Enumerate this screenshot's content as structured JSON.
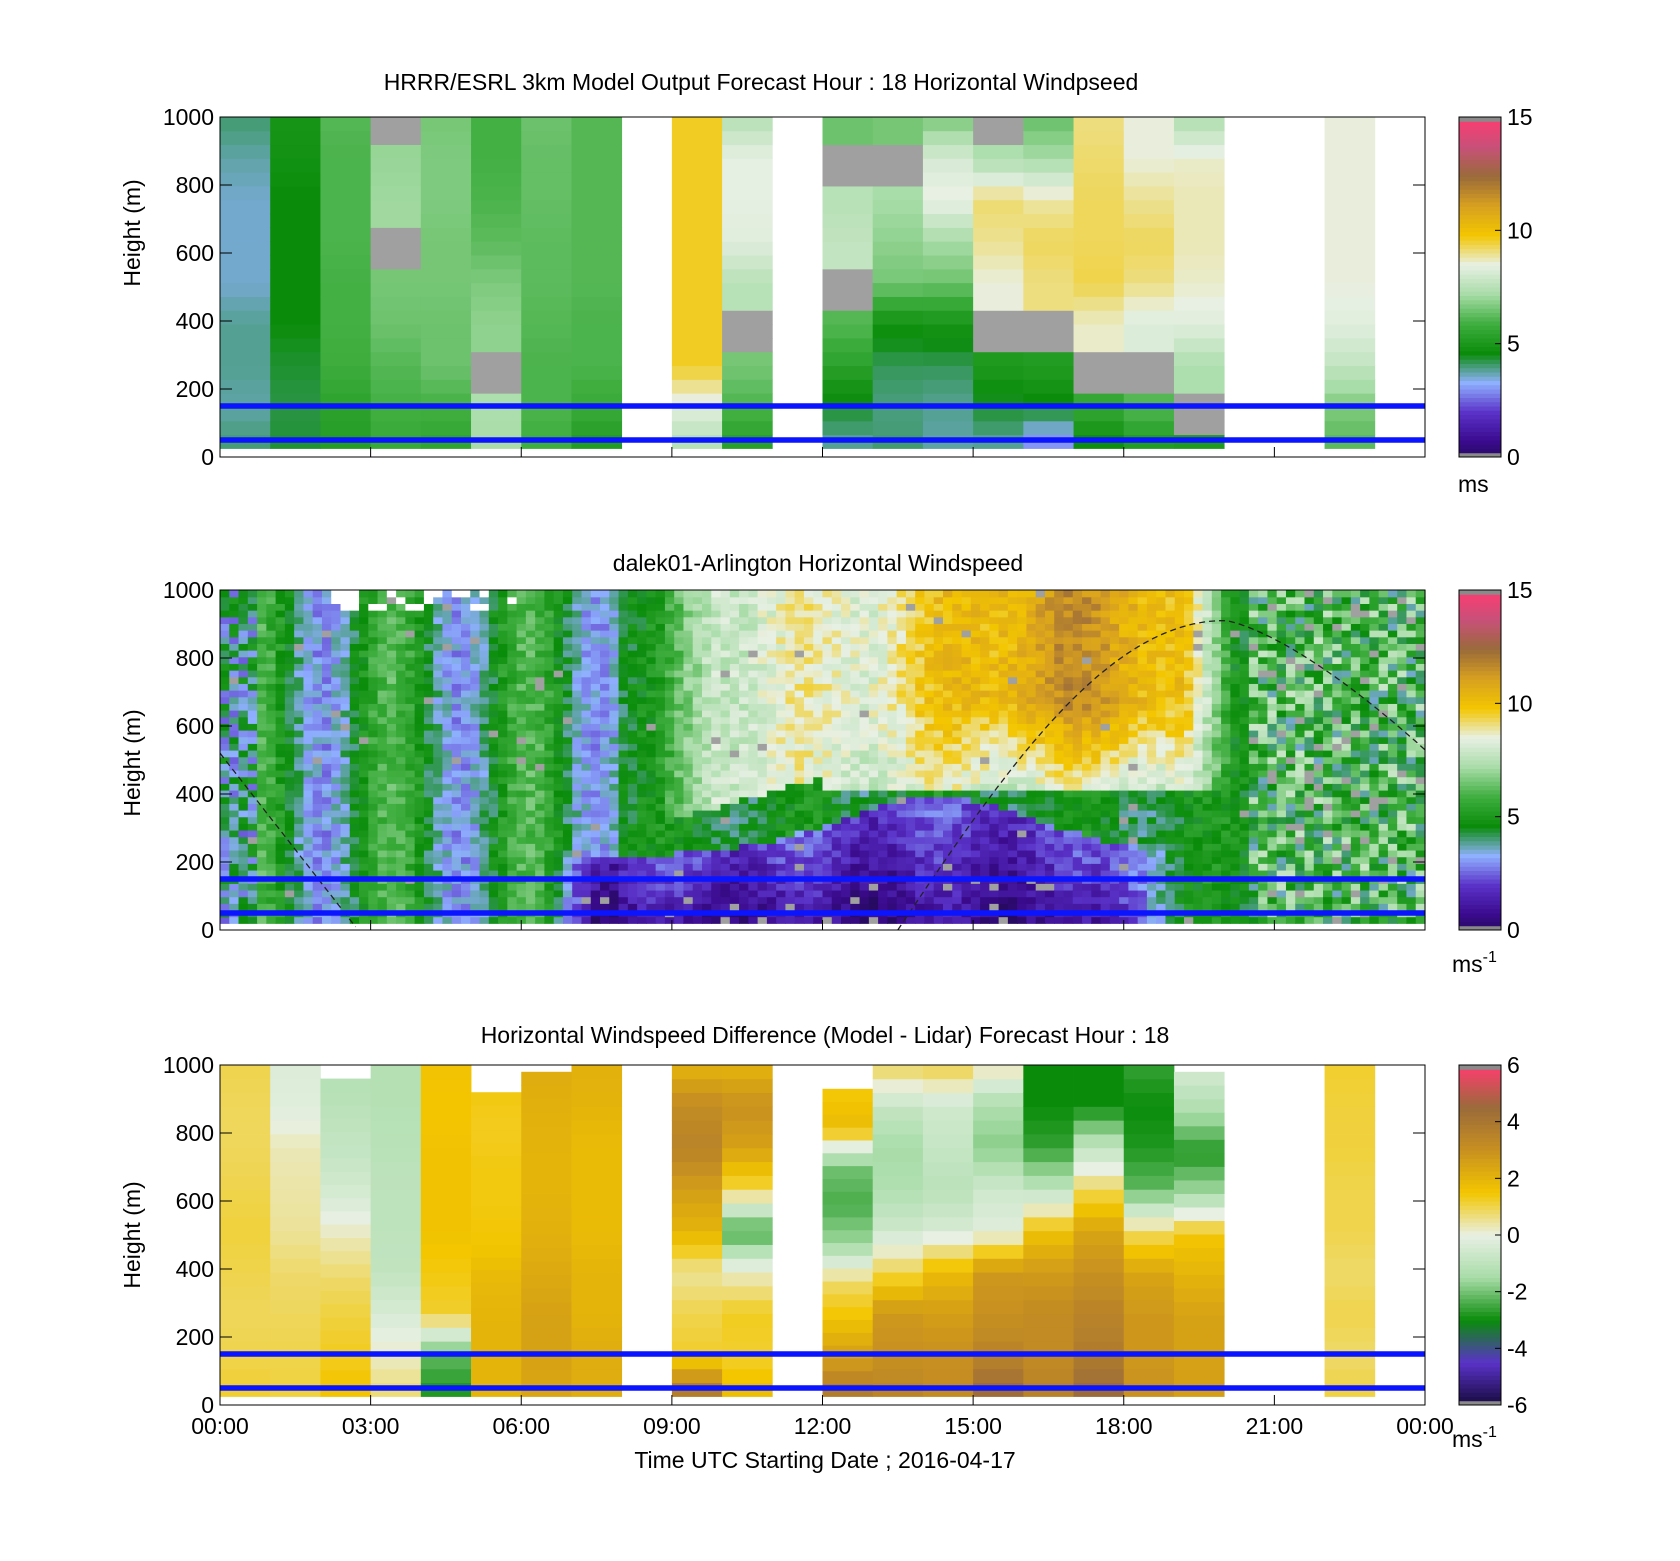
{
  "figure": {
    "xlabel": "Time UTC  Starting Date ; 2016-04-17",
    "x_ticks": [
      "00:00",
      "03:00",
      "06:00",
      "09:00",
      "12:00",
      "15:00",
      "18:00",
      "21:00",
      "00:00"
    ]
  },
  "colors": {
    "reference_lines": "#0a14ff",
    "colormap_speed": [
      "#3a3a3a",
      "#160a3c",
      "#3a0a8c",
      "#5a32c8",
      "#8fb0ff",
      "#0a8c0a",
      "#3fae3f",
      "#a8dca8",
      "#e8f0e4",
      "#f3c600",
      "#d8a020",
      "#9a6a3a",
      "#c8507a",
      "#ff3c70"
    ],
    "colormap_diff": [
      "#3a3a3a",
      "#160a3c",
      "#5a32c8",
      "#0a8c0a",
      "#a8dca8",
      "#e8f0e4",
      "#f3c600",
      "#c89020",
      "#9a6a3a",
      "#ff3c70"
    ],
    "missing": "#a0a0a0"
  },
  "chart_data": [
    {
      "type": "heatmap",
      "title": "HRRR/ESRL 3km Model Output   Forecast Hour : 18 Horizontal Windpseed",
      "xlabel": "",
      "ylabel": "Height (m)",
      "ylim": [
        0,
        1000
      ],
      "y_ticks": [
        "0",
        "200",
        "400",
        "600",
        "800",
        "1000"
      ],
      "colorbar": {
        "ticks": [
          "0",
          "5",
          "10",
          "15"
        ],
        "range": [
          0,
          15
        ],
        "unit_label": "ms",
        "unit_superscript": ""
      },
      "reference_lines_m": [
        50,
        150
      ],
      "columns_hour": [
        0.5,
        1.5,
        2.5,
        3.5,
        4.5,
        5.5,
        6.5,
        7.5,
        9.5,
        10.5,
        12.5,
        13.5,
        14.5,
        15.5,
        16.5,
        17.5,
        18.5,
        19.5,
        22.5
      ],
      "column_top_m": [
        1000,
        1000,
        1000,
        1000,
        1000,
        1000,
        1000,
        1000,
        1000,
        1000,
        1000,
        1000,
        1000,
        1000,
        1000,
        1000,
        1000,
        1000,
        1000
      ],
      "profiles_bottom_to_top_ms": [
        [
          4.5,
          4.2,
          4.3,
          4.3,
          4.0,
          4.0,
          4.0,
          4.2,
          4.5
        ],
        [
          4.8,
          4.7,
          4.8,
          5.0,
          5.0,
          5.0,
          5.0,
          5.2,
          5.3
        ],
        [
          5.6,
          5.8,
          6.2,
          6.3,
          6.3,
          6.4,
          6.4,
          6.4,
          6.5
        ],
        [
          6.0,
          6.3,
          6.5,
          6.8,
          6.9,
          0.3,
          7.4,
          7.3,
          0.3
        ],
        [
          5.8,
          6.3,
          6.8,
          6.8,
          6.9,
          6.9,
          7.0,
          7.0,
          6.9
        ],
        [
          7.5,
          7.6,
          0.3,
          7.2,
          7.0,
          6.6,
          6.4,
          6.3,
          6.3
        ],
        [
          6.2,
          6.4,
          6.4,
          6.5,
          6.6,
          6.6,
          6.7,
          6.7,
          6.8
        ],
        [
          5.5,
          6.1,
          6.4,
          6.4,
          6.5,
          6.5,
          6.5,
          6.5,
          6.5
        ],
        [
          7.6,
          8.6,
          9.8,
          9.8,
          9.8,
          9.8,
          9.8,
          9.8,
          9.8
        ],
        [
          5.6,
          6.4,
          6.9,
          0.3,
          7.8,
          8.6,
          8.7,
          8.7,
          7.7
        ],
        [
          4.2,
          4.8,
          5.8,
          6.5,
          0.3,
          8.0,
          7.8,
          0.3,
          6.8
        ],
        [
          4.5,
          4.4,
          4.6,
          5.2,
          6.9,
          7.2,
          7.5,
          0.3,
          6.9
        ],
        [
          4.2,
          4.3,
          4.6,
          5.3,
          6.8,
          7.5,
          8.8,
          8.4,
          6.9
        ],
        [
          4.2,
          4.8,
          5.5,
          0.3,
          8.8,
          9.2,
          9.4,
          7.6,
          0.3
        ],
        [
          3.2,
          4.9,
          5.6,
          0.3,
          9.3,
          9.5,
          9.1,
          7.5,
          6.7
        ],
        [
          4.9,
          6.0,
          0.3,
          8.9,
          9.6,
          9.5,
          9.5,
          9.4,
          9.3
        ],
        [
          5.4,
          6.5,
          0.3,
          8.5,
          9.3,
          9.5,
          9.2,
          8.8,
          8.8
        ],
        [
          5.5,
          0.3,
          7.6,
          8.6,
          8.9,
          9.0,
          9.0,
          8.9,
          7.6
        ],
        [
          6.5,
          7.0,
          8.0,
          8.6,
          8.8,
          8.8,
          8.8,
          8.8,
          8.8
        ]
      ]
    },
    {
      "type": "heatmap",
      "title": "dalek01-Arlington  Horizontal Windspeed",
      "xlabel": "",
      "ylabel": "Height (m)",
      "ylim": [
        0,
        1000
      ],
      "y_ticks": [
        "0",
        "200",
        "400",
        "600",
        "800",
        "1000"
      ],
      "colorbar": {
        "ticks": [
          "0",
          "5",
          "10",
          "15"
        ],
        "range": [
          0,
          15
        ],
        "unit_label": "ms",
        "unit_superscript": "-1"
      },
      "reference_lines_m": [
        50,
        150
      ],
      "overlay_curve": "dashed boundary-layer height line, descends 520 m at 00:00 to 0 m near 02:45, rises from 0 m near 13:30 to a peak of 910 m near 20:00, then falls to 530 m at 24:00",
      "time_hours": [
        0,
        1,
        2,
        3,
        4,
        5,
        6,
        7,
        8,
        9,
        10,
        11,
        12,
        13,
        14,
        15,
        16,
        17,
        18,
        19,
        20,
        21,
        22,
        23,
        24
      ],
      "heights_m": [
        25,
        75,
        125,
        175,
        225,
        275,
        325,
        375,
        425,
        475,
        525,
        575,
        625,
        675,
        725,
        775,
        825,
        875,
        925,
        975
      ],
      "summary": "Low jet of weak winds (1-3 m/s) below 200 m from 08:00 to 19:00; stronger 8-12 m/s layer between 450 and 1000 m from 09:00 to 20:00; 4-7 m/s elsewhere"
    },
    {
      "type": "heatmap",
      "title": "Horizontal Windspeed Difference (Model - Lidar) Forecast Hour : 18",
      "xlabel": "Time UTC  Starting Date ; 2016-04-17",
      "ylabel": "Height (m)",
      "ylim": [
        0,
        1000
      ],
      "y_ticks": [
        "0",
        "200",
        "400",
        "600",
        "800",
        "1000"
      ],
      "colorbar": {
        "ticks": [
          "-6",
          "-4",
          "-2",
          "0",
          "2",
          "4",
          "6"
        ],
        "range": [
          -6,
          6
        ],
        "unit_label": "ms",
        "unit_superscript": "-1"
      },
      "reference_lines_m": [
        50,
        150
      ],
      "columns_hour": [
        0.5,
        1.5,
        2.5,
        3.5,
        4.5,
        5.5,
        6.5,
        7.5,
        9.5,
        10.5,
        12.5,
        13.5,
        14.5,
        15.5,
        16.5,
        17.5,
        18.5,
        19.5,
        22.5
      ],
      "column_top_m": [
        1000,
        1000,
        960,
        1000,
        1000,
        920,
        980,
        1000,
        1000,
        1000,
        930,
        1000,
        1000,
        1000,
        1000,
        1000,
        1000,
        980,
        1000
      ],
      "profiles_bottom_to_top_ms": [
        [
          1.2,
          1.0,
          0.9,
          1.0,
          1.1,
          1.0,
          0.9,
          0.9,
          1.0
        ],
        [
          1.1,
          1.0,
          0.9,
          0.8,
          0.5,
          0.4,
          0.3,
          -0.2,
          -0.3
        ],
        [
          1.6,
          1.3,
          1.1,
          0.8,
          0.3,
          -0.4,
          -0.8,
          -1.0,
          -1.2
        ],
        [
          0.8,
          0.2,
          -0.4,
          -0.9,
          -1.0,
          -1.0,
          -1.1,
          -1.2,
          -1.2
        ],
        [
          -2.9,
          -2.2,
          1.2,
          1.4,
          1.6,
          1.6,
          1.6,
          1.5,
          1.6
        ],
        [
          2.0,
          2.0,
          2.0,
          1.9,
          1.5,
          1.4,
          1.4,
          1.3,
          1.4
        ],
        [
          2.4,
          2.5,
          2.5,
          2.3,
          2.1,
          2.0,
          2.0,
          2.1,
          2.2
        ],
        [
          2.2,
          2.2,
          2.0,
          2.0,
          1.8,
          1.8,
          1.8,
          2.0,
          2.1
        ],
        [
          4.2,
          1.2,
          1.0,
          0.5,
          2.0,
          2.6,
          3.5,
          3.2,
          2.0
        ],
        [
          1.8,
          1.2,
          1.3,
          0.2,
          -2.5,
          1.0,
          2.5,
          3.0,
          2.0
        ],
        [
          4.0,
          2.6,
          1.6,
          0.8,
          -1.6,
          -2.4,
          -2.0,
          1.8,
          1.4
        ],
        [
          3.5,
          3.0,
          2.8,
          1.0,
          -0.6,
          -1.3,
          -1.5,
          -0.8,
          1.0
        ],
        [
          3.2,
          3.0,
          2.6,
          1.8,
          -0.4,
          -1.1,
          -0.8,
          -0.6,
          1.1
        ],
        [
          4.6,
          3.5,
          3.0,
          2.8,
          -0.2,
          -0.6,
          -1.8,
          -1.4,
          0.5
        ],
        [
          3.6,
          3.2,
          3.2,
          2.7,
          1.6,
          -1.0,
          -2.6,
          -3.0,
          -3.0
        ],
        [
          4.6,
          3.8,
          3.5,
          3.0,
          2.4,
          0.9,
          -0.9,
          -3.0,
          -3.0
        ],
        [
          3.0,
          2.8,
          2.8,
          2.4,
          0.8,
          -2.2,
          -2.8,
          -3.0,
          -2.6
        ],
        [
          2.6,
          2.5,
          2.5,
          2.0,
          1.5,
          -1.5,
          -2.8,
          -1.4,
          -0.5
        ],
        [
          1.1,
          0.8,
          1.0,
          0.8,
          1.0,
          1.0,
          1.1,
          1.1,
          1.2
        ]
      ]
    }
  ]
}
